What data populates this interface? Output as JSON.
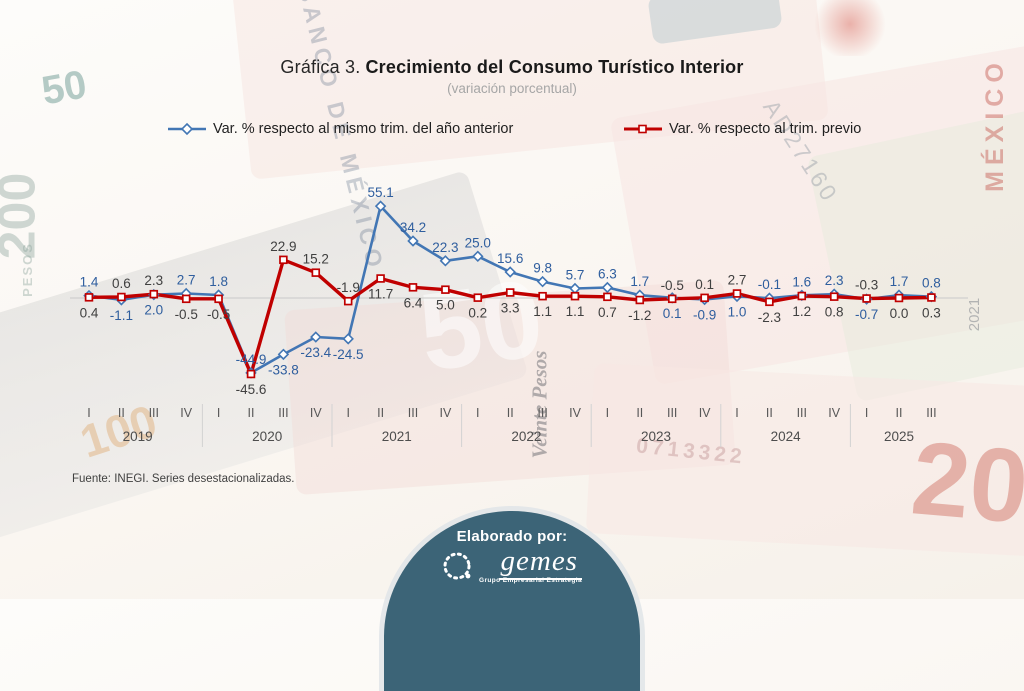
{
  "title": {
    "prefix": "Gráfica 3.",
    "main": "Crecimiento del Consumo Turístico Interior",
    "subtitle": "(variación porcentual)"
  },
  "source": "Fuente: INEGI. Series desestacionalizadas.",
  "footer": {
    "heading": "Elaborado por:",
    "logo_text": "gemes",
    "logo_tagline": "Grupo Empresarial Estrategia",
    "circle_color": "#3c6477"
  },
  "background": {
    "watermarks": [
      "50",
      "200",
      "PESOS",
      "100",
      "20",
      "Veinte Pesos",
      "MÉXICO",
      "BANCO DE MÉXICO",
      "AD27160",
      "2021",
      "0713322",
      "50"
    ]
  },
  "chart_data": {
    "type": "line",
    "title": "Gráfica 3. Crecimiento del Consumo Turístico Interior (variación porcentual)",
    "legend_position": "top",
    "grid": "zero-line-only",
    "ylim": [
      -50,
      60
    ],
    "years": [
      {
        "label": "2019",
        "quarters": [
          "I",
          "II",
          "III",
          "IV"
        ]
      },
      {
        "label": "2020",
        "quarters": [
          "I",
          "II",
          "III",
          "IV"
        ]
      },
      {
        "label": "2021",
        "quarters": [
          "I",
          "II",
          "III",
          "IV"
        ]
      },
      {
        "label": "2022",
        "quarters": [
          "I",
          "II",
          "III",
          "IV"
        ]
      },
      {
        "label": "2023",
        "quarters": [
          "I",
          "II",
          "III",
          "IV"
        ]
      },
      {
        "label": "2024",
        "quarters": [
          "I",
          "II",
          "III",
          "IV"
        ]
      },
      {
        "label": "2025",
        "quarters": [
          "I",
          "II",
          "III"
        ]
      }
    ],
    "series": [
      {
        "name": "Var. % respecto al mismo trim. del año anterior",
        "color": "#4276b4",
        "label_color": "#2f5e9e",
        "marker": "diamond",
        "values": [
          1.4,
          -1.1,
          2.0,
          2.7,
          1.8,
          -44.9,
          -33.8,
          -23.4,
          -24.5,
          55.1,
          34.2,
          22.3,
          25.0,
          15.6,
          9.8,
          5.7,
          6.3,
          1.7,
          0.1,
          -0.9,
          1.0,
          -0.1,
          1.6,
          2.3,
          -0.7,
          1.7,
          0.8
        ],
        "label_side": [
          "above",
          "below",
          "below",
          "above",
          "above",
          "above",
          "below",
          "below",
          "below",
          "above",
          "above",
          "above",
          "above",
          "above",
          "above",
          "above",
          "above",
          "above",
          "below",
          "below",
          "below",
          "above",
          "above",
          "above",
          "below",
          "above",
          "above"
        ]
      },
      {
        "name": "Var. % respecto al trim. previo",
        "color": "#c00000",
        "label_color": "#404040",
        "marker": "square",
        "values": [
          0.4,
          0.6,
          2.3,
          -0.5,
          -0.5,
          -45.6,
          22.9,
          15.2,
          -1.9,
          11.7,
          6.4,
          5.0,
          0.2,
          3.3,
          1.1,
          1.1,
          0.7,
          -1.2,
          -0.5,
          0.1,
          2.7,
          -2.3,
          1.2,
          0.8,
          -0.3,
          0.0,
          0.3
        ],
        "label_side": [
          "below",
          "above",
          "above",
          "below",
          "below",
          "below",
          "above",
          "above",
          "above",
          "below",
          "below",
          "below",
          "below",
          "below",
          "below",
          "below",
          "below",
          "below",
          "above",
          "above",
          "above",
          "below",
          "below",
          "below",
          "above",
          "below",
          "below"
        ]
      }
    ]
  }
}
